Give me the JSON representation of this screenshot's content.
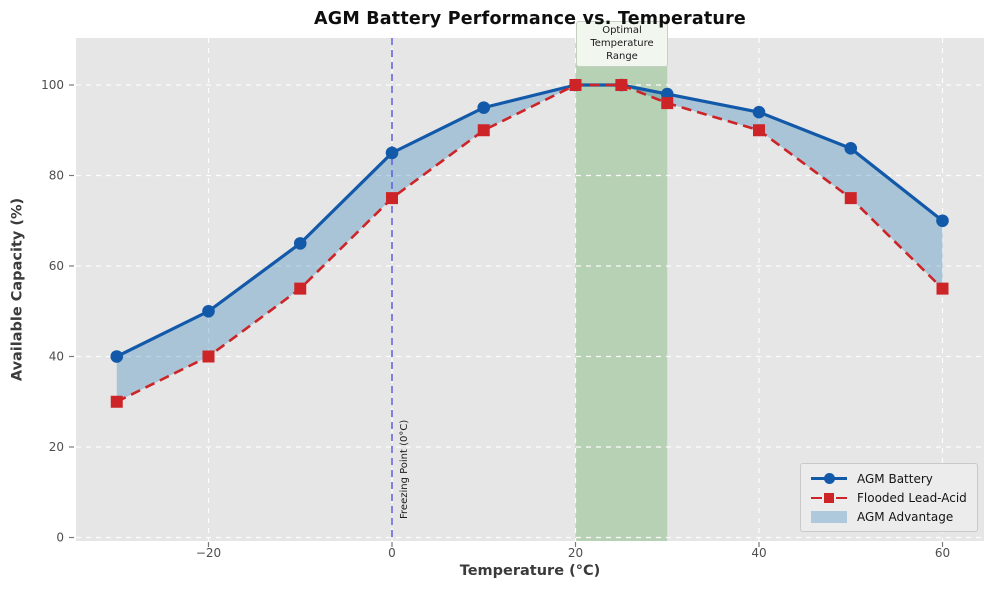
{
  "figure": {
    "title": "AGM Battery Performance vs. Temperature",
    "xlabel": "Temperature (°C)",
    "ylabel": "Available Capacity (%)"
  },
  "chart_data": {
    "type": "line",
    "title": "AGM Battery Performance vs. Temperature",
    "xlabel": "Temperature (°C)",
    "ylabel": "Available Capacity (%)",
    "x": [
      -30,
      -20,
      -10,
      0,
      10,
      20,
      25,
      30,
      40,
      50,
      60
    ],
    "series": [
      {
        "name": "AGM Battery",
        "values": [
          40,
          50,
          65,
          85,
          95,
          100,
          100,
          98,
          94,
          86,
          70
        ],
        "color": "#1359aa",
        "marker": "circle",
        "line": "solid"
      },
      {
        "name": "Flooded Lead-Acid",
        "values": [
          30,
          40,
          55,
          75,
          90,
          100,
          100,
          96,
          90,
          75,
          55
        ],
        "color": "#cd2428",
        "marker": "square",
        "line": "dashed"
      }
    ],
    "fill_between": {
      "label": "AGM Advantage",
      "between": [
        "AGM Battery",
        "Flooded Lead-Acid"
      ],
      "color": "rgba(31,119,180,0.30)"
    },
    "xlim": [
      -34.5,
      64.5
    ],
    "ylim": [
      0,
      110
    ],
    "xticks": [
      -20,
      0,
      20,
      40,
      60
    ],
    "yticks": [
      0,
      20,
      40,
      60,
      80,
      100
    ],
    "grid": {
      "on": true,
      "color": "#ffffff",
      "style": "dashed"
    },
    "plot_bg": "#e6e6e6",
    "vspan": {
      "from": 20,
      "to": 30,
      "color": "#b7d1b4",
      "label": "Optimal\nTemperature\nRange"
    },
    "vline": {
      "x": 0,
      "color": "#5a5ae0",
      "style": "dashed",
      "label": "Freezing Point (0°C)"
    },
    "legend_position": "lower right"
  },
  "legend": {
    "items": [
      {
        "label": "AGM Battery"
      },
      {
        "label": "Flooded Lead-Acid"
      },
      {
        "label": "AGM Advantage"
      }
    ]
  },
  "annotations": {
    "optimal_range": "Optimal\nTemperature\nRange",
    "freezing_point": "Freezing Point (0°C)"
  }
}
